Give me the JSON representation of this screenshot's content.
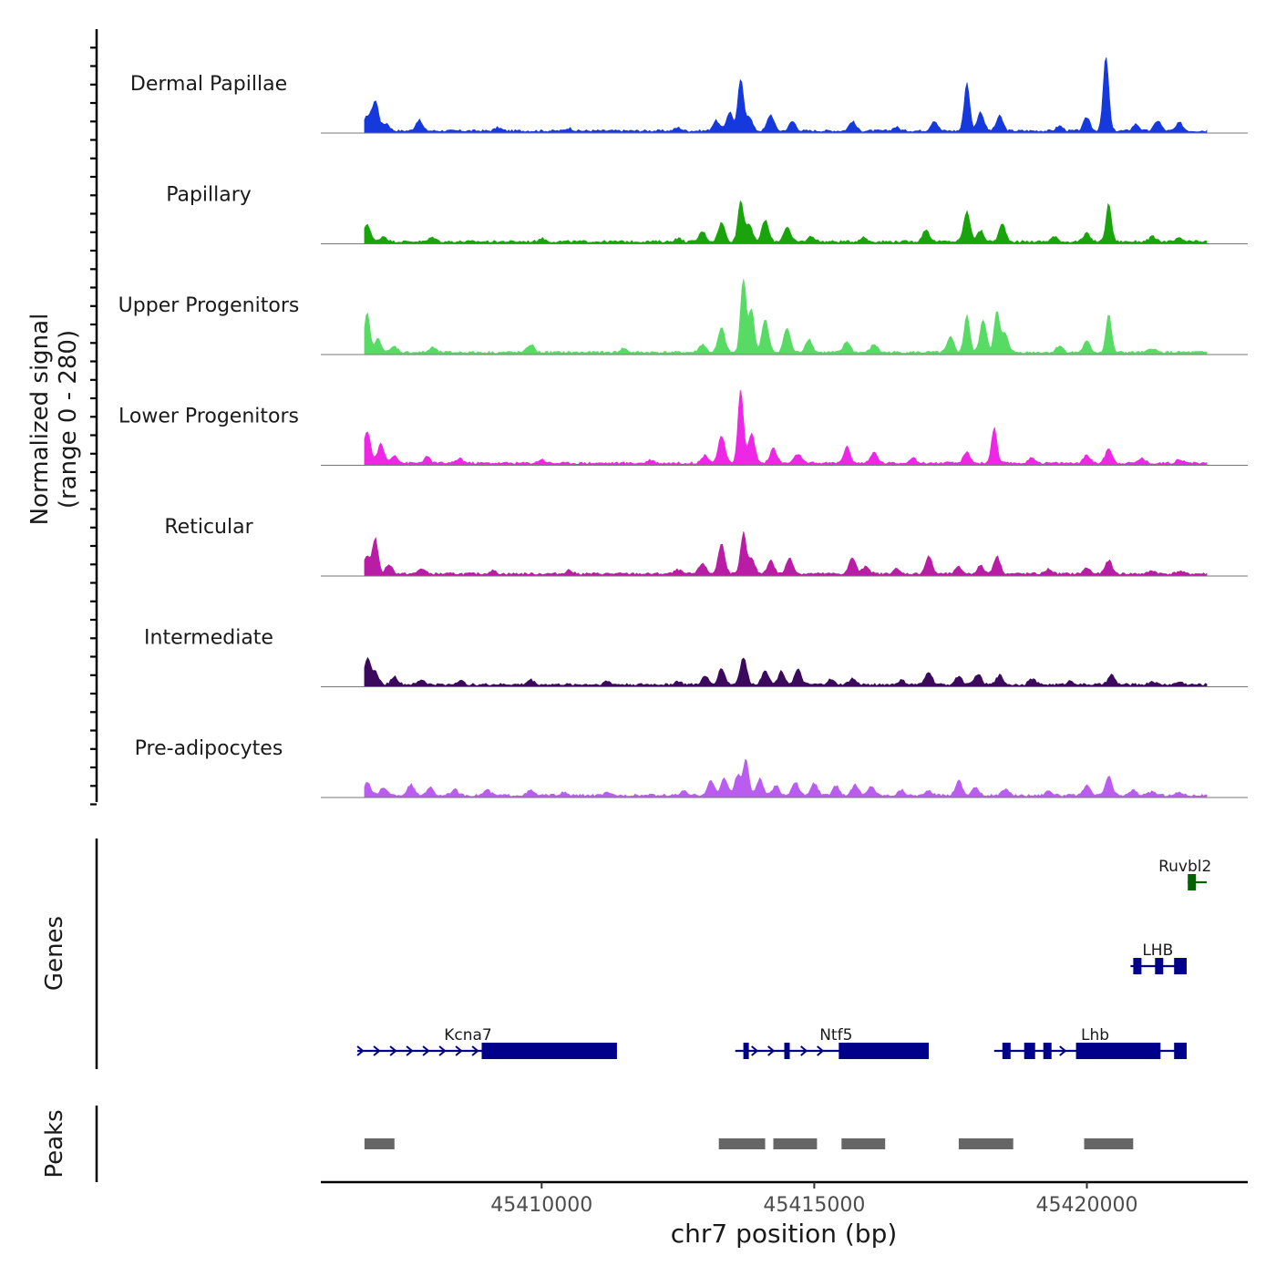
{
  "chart_data": {
    "type": "area",
    "chromosome": "chr7",
    "xlabel": "chr7 position (bp)",
    "ylabel_line1": "Normalized signal",
    "ylabel_line2": "(range 0 - 280)",
    "xlim": [
      45405950,
      45422950
    ],
    "ylim": [
      0,
      280
    ],
    "x_ticks": [
      {
        "value": 45410000,
        "label": "45410000"
      },
      {
        "value": 45415000,
        "label": "45415000"
      },
      {
        "value": 45420000,
        "label": "45420000"
      }
    ],
    "signal_span": [
      45406750,
      45422200
    ],
    "tracks": [
      {
        "name": "Dermal Papillae",
        "color": "#1539dc",
        "peaks": [
          [
            45406800,
            52
          ],
          [
            45406950,
            110
          ],
          [
            45407150,
            28
          ],
          [
            45407750,
            40
          ],
          [
            45409200,
            12
          ],
          [
            45410500,
            10
          ],
          [
            45412500,
            12
          ],
          [
            45413200,
            38
          ],
          [
            45413450,
            70
          ],
          [
            45413650,
            190
          ],
          [
            45413800,
            55
          ],
          [
            45414200,
            60
          ],
          [
            45414600,
            35
          ],
          [
            45415700,
            35
          ],
          [
            45416500,
            14
          ],
          [
            45417200,
            38
          ],
          [
            45417800,
            180
          ],
          [
            45418050,
            70
          ],
          [
            45418400,
            55
          ],
          [
            45419500,
            18
          ],
          [
            45420000,
            50
          ],
          [
            45420350,
            280
          ],
          [
            45420900,
            25
          ],
          [
            45421300,
            38
          ],
          [
            45421700,
            30
          ]
        ]
      },
      {
        "name": "Papillary",
        "color": "#18a40a",
        "peaks": [
          [
            45406800,
            65
          ],
          [
            45407100,
            20
          ],
          [
            45408000,
            16
          ],
          [
            45410000,
            12
          ],
          [
            45412500,
            12
          ],
          [
            45412950,
            38
          ],
          [
            45413300,
            70
          ],
          [
            45413650,
            150
          ],
          [
            45413800,
            65
          ],
          [
            45414100,
            80
          ],
          [
            45414500,
            55
          ],
          [
            45414950,
            20
          ],
          [
            45415900,
            16
          ],
          [
            45417050,
            45
          ],
          [
            45417800,
            110
          ],
          [
            45418050,
            40
          ],
          [
            45418450,
            65
          ],
          [
            45419400,
            18
          ],
          [
            45420000,
            30
          ],
          [
            45420400,
            140
          ],
          [
            45421200,
            18
          ],
          [
            45421700,
            12
          ]
        ]
      },
      {
        "name": "Upper Progenitors",
        "color": "#58db65",
        "peaks": [
          [
            45406800,
            145
          ],
          [
            45407000,
            50
          ],
          [
            45407300,
            22
          ],
          [
            45408000,
            18
          ],
          [
            45409800,
            30
          ],
          [
            45411500,
            15
          ],
          [
            45412950,
            30
          ],
          [
            45413300,
            90
          ],
          [
            45413700,
            280
          ],
          [
            45413850,
            160
          ],
          [
            45414100,
            120
          ],
          [
            45414500,
            90
          ],
          [
            45414900,
            50
          ],
          [
            45415600,
            40
          ],
          [
            45416100,
            30
          ],
          [
            45417500,
            55
          ],
          [
            45417800,
            140
          ],
          [
            45418100,
            120
          ],
          [
            45418350,
            150
          ],
          [
            45418500,
            70
          ],
          [
            45419500,
            25
          ],
          [
            45420000,
            40
          ],
          [
            45420400,
            140
          ],
          [
            45421200,
            15
          ]
        ]
      },
      {
        "name": "Lower Progenitors",
        "color": "#ee27e6",
        "peaks": [
          [
            45406800,
            120
          ],
          [
            45407050,
            70
          ],
          [
            45407300,
            30
          ],
          [
            45407900,
            22
          ],
          [
            45408500,
            18
          ],
          [
            45410000,
            14
          ],
          [
            45412000,
            12
          ],
          [
            45413000,
            30
          ],
          [
            45413300,
            100
          ],
          [
            45413650,
            270
          ],
          [
            45413850,
            110
          ],
          [
            45414250,
            55
          ],
          [
            45414700,
            35
          ],
          [
            45415600,
            60
          ],
          [
            45416100,
            40
          ],
          [
            45416800,
            20
          ],
          [
            45417800,
            40
          ],
          [
            45418300,
            130
          ],
          [
            45419000,
            20
          ],
          [
            45420000,
            30
          ],
          [
            45420400,
            55
          ],
          [
            45421000,
            18
          ],
          [
            45421700,
            15
          ]
        ]
      },
      {
        "name": "Reticular",
        "color": "#b91da6",
        "peaks": [
          [
            45406800,
            65
          ],
          [
            45406950,
            130
          ],
          [
            45407200,
            35
          ],
          [
            45407800,
            20
          ],
          [
            45409100,
            12
          ],
          [
            45410500,
            14
          ],
          [
            45412500,
            15
          ],
          [
            45412950,
            40
          ],
          [
            45413300,
            110
          ],
          [
            45413700,
            150
          ],
          [
            45413850,
            55
          ],
          [
            45414200,
            50
          ],
          [
            45414550,
            60
          ],
          [
            45415700,
            60
          ],
          [
            45415950,
            30
          ],
          [
            45416500,
            18
          ],
          [
            45417100,
            65
          ],
          [
            45417650,
            25
          ],
          [
            45418050,
            30
          ],
          [
            45418350,
            65
          ],
          [
            45419300,
            18
          ],
          [
            45420000,
            22
          ],
          [
            45420400,
            50
          ],
          [
            45421200,
            12
          ],
          [
            45421700,
            10
          ]
        ]
      },
      {
        "name": "Intermediate",
        "color": "#3b0a5c",
        "peaks": [
          [
            45406800,
            95
          ],
          [
            45406950,
            45
          ],
          [
            45407300,
            30
          ],
          [
            45407800,
            18
          ],
          [
            45408500,
            15
          ],
          [
            45409800,
            18
          ],
          [
            45411200,
            12
          ],
          [
            45412500,
            12
          ],
          [
            45413000,
            30
          ],
          [
            45413300,
            60
          ],
          [
            45413700,
            100
          ],
          [
            45414100,
            55
          ],
          [
            45414400,
            50
          ],
          [
            45414700,
            55
          ],
          [
            45415300,
            18
          ],
          [
            45415700,
            22
          ],
          [
            45416600,
            16
          ],
          [
            45417100,
            48
          ],
          [
            45417650,
            32
          ],
          [
            45418000,
            40
          ],
          [
            45418400,
            35
          ],
          [
            45419000,
            22
          ],
          [
            45419700,
            14
          ],
          [
            45420450,
            36
          ],
          [
            45421200,
            12
          ],
          [
            45421700,
            10
          ]
        ]
      },
      {
        "name": "Pre-adipocytes",
        "color": "#bb5cf0",
        "peaks": [
          [
            45406800,
            50
          ],
          [
            45407100,
            30
          ],
          [
            45407600,
            40
          ],
          [
            45407950,
            30
          ],
          [
            45408400,
            22
          ],
          [
            45409000,
            20
          ],
          [
            45409800,
            18
          ],
          [
            45410400,
            10
          ],
          [
            45411200,
            8
          ],
          [
            45412600,
            15
          ],
          [
            45413100,
            55
          ],
          [
            45413350,
            65
          ],
          [
            45413600,
            75
          ],
          [
            45413750,
            130
          ],
          [
            45414000,
            60
          ],
          [
            45414300,
            35
          ],
          [
            45414650,
            50
          ],
          [
            45415000,
            45
          ],
          [
            45415400,
            35
          ],
          [
            45415750,
            40
          ],
          [
            45416050,
            35
          ],
          [
            45416600,
            20
          ],
          [
            45417100,
            15
          ],
          [
            45417650,
            55
          ],
          [
            45417950,
            30
          ],
          [
            45418500,
            22
          ],
          [
            45419300,
            18
          ],
          [
            45420000,
            35
          ],
          [
            45420400,
            70
          ],
          [
            45420850,
            20
          ],
          [
            45421200,
            15
          ],
          [
            45421700,
            12
          ]
        ]
      }
    ],
    "genes": [
      {
        "name": "Ruvbl2",
        "color": "#006400",
        "row": 1,
        "strand": "-",
        "start": 45421850,
        "end": 45422200,
        "exons": [
          [
            45421850,
            45422000
          ]
        ],
        "label_pos": 45421800
      },
      {
        "name": "LHB",
        "color": "#00008b",
        "row": 2,
        "strand": "+",
        "start": 45420800,
        "end": 45421830,
        "exons": [
          [
            45420850,
            45421000
          ],
          [
            45421250,
            45421400
          ],
          [
            45421600,
            45421830
          ]
        ],
        "label_pos": 45421300
      },
      {
        "name": "Kcna7",
        "color": "#00008b",
        "row": 3,
        "strand": "+",
        "start": 45406620,
        "end": 45411380,
        "exons": [
          [
            45408900,
            45411380
          ]
        ],
        "label_pos": 45408650
      },
      {
        "name": "Ntf5",
        "color": "#00008b",
        "row": 3,
        "strand": "+",
        "start": 45413550,
        "end": 45417100,
        "exons": [
          [
            45413700,
            45413800
          ],
          [
            45414450,
            45414550
          ],
          [
            45415450,
            45417100
          ]
        ],
        "label_pos": 45415400
      },
      {
        "name": "Lhb",
        "color": "#00008b",
        "row": 3,
        "strand": "+",
        "start": 45418300,
        "end": 45421830,
        "exons": [
          [
            45418450,
            45418600
          ],
          [
            45418850,
            45419050
          ],
          [
            45419200,
            45419350
          ],
          [
            45419800,
            45421350
          ],
          [
            45421600,
            45421830
          ]
        ],
        "label_pos": 45420150
      }
    ],
    "peaks_track": {
      "color": "#666666",
      "regions": [
        [
          45406750,
          45407300
        ],
        [
          45413250,
          45414100
        ],
        [
          45414250,
          45415050
        ],
        [
          45415500,
          45416300
        ],
        [
          45417650,
          45418650
        ],
        [
          45419950,
          45420850
        ]
      ]
    },
    "panel_labels": {
      "genes": "Genes",
      "peaks": "Peaks"
    }
  }
}
